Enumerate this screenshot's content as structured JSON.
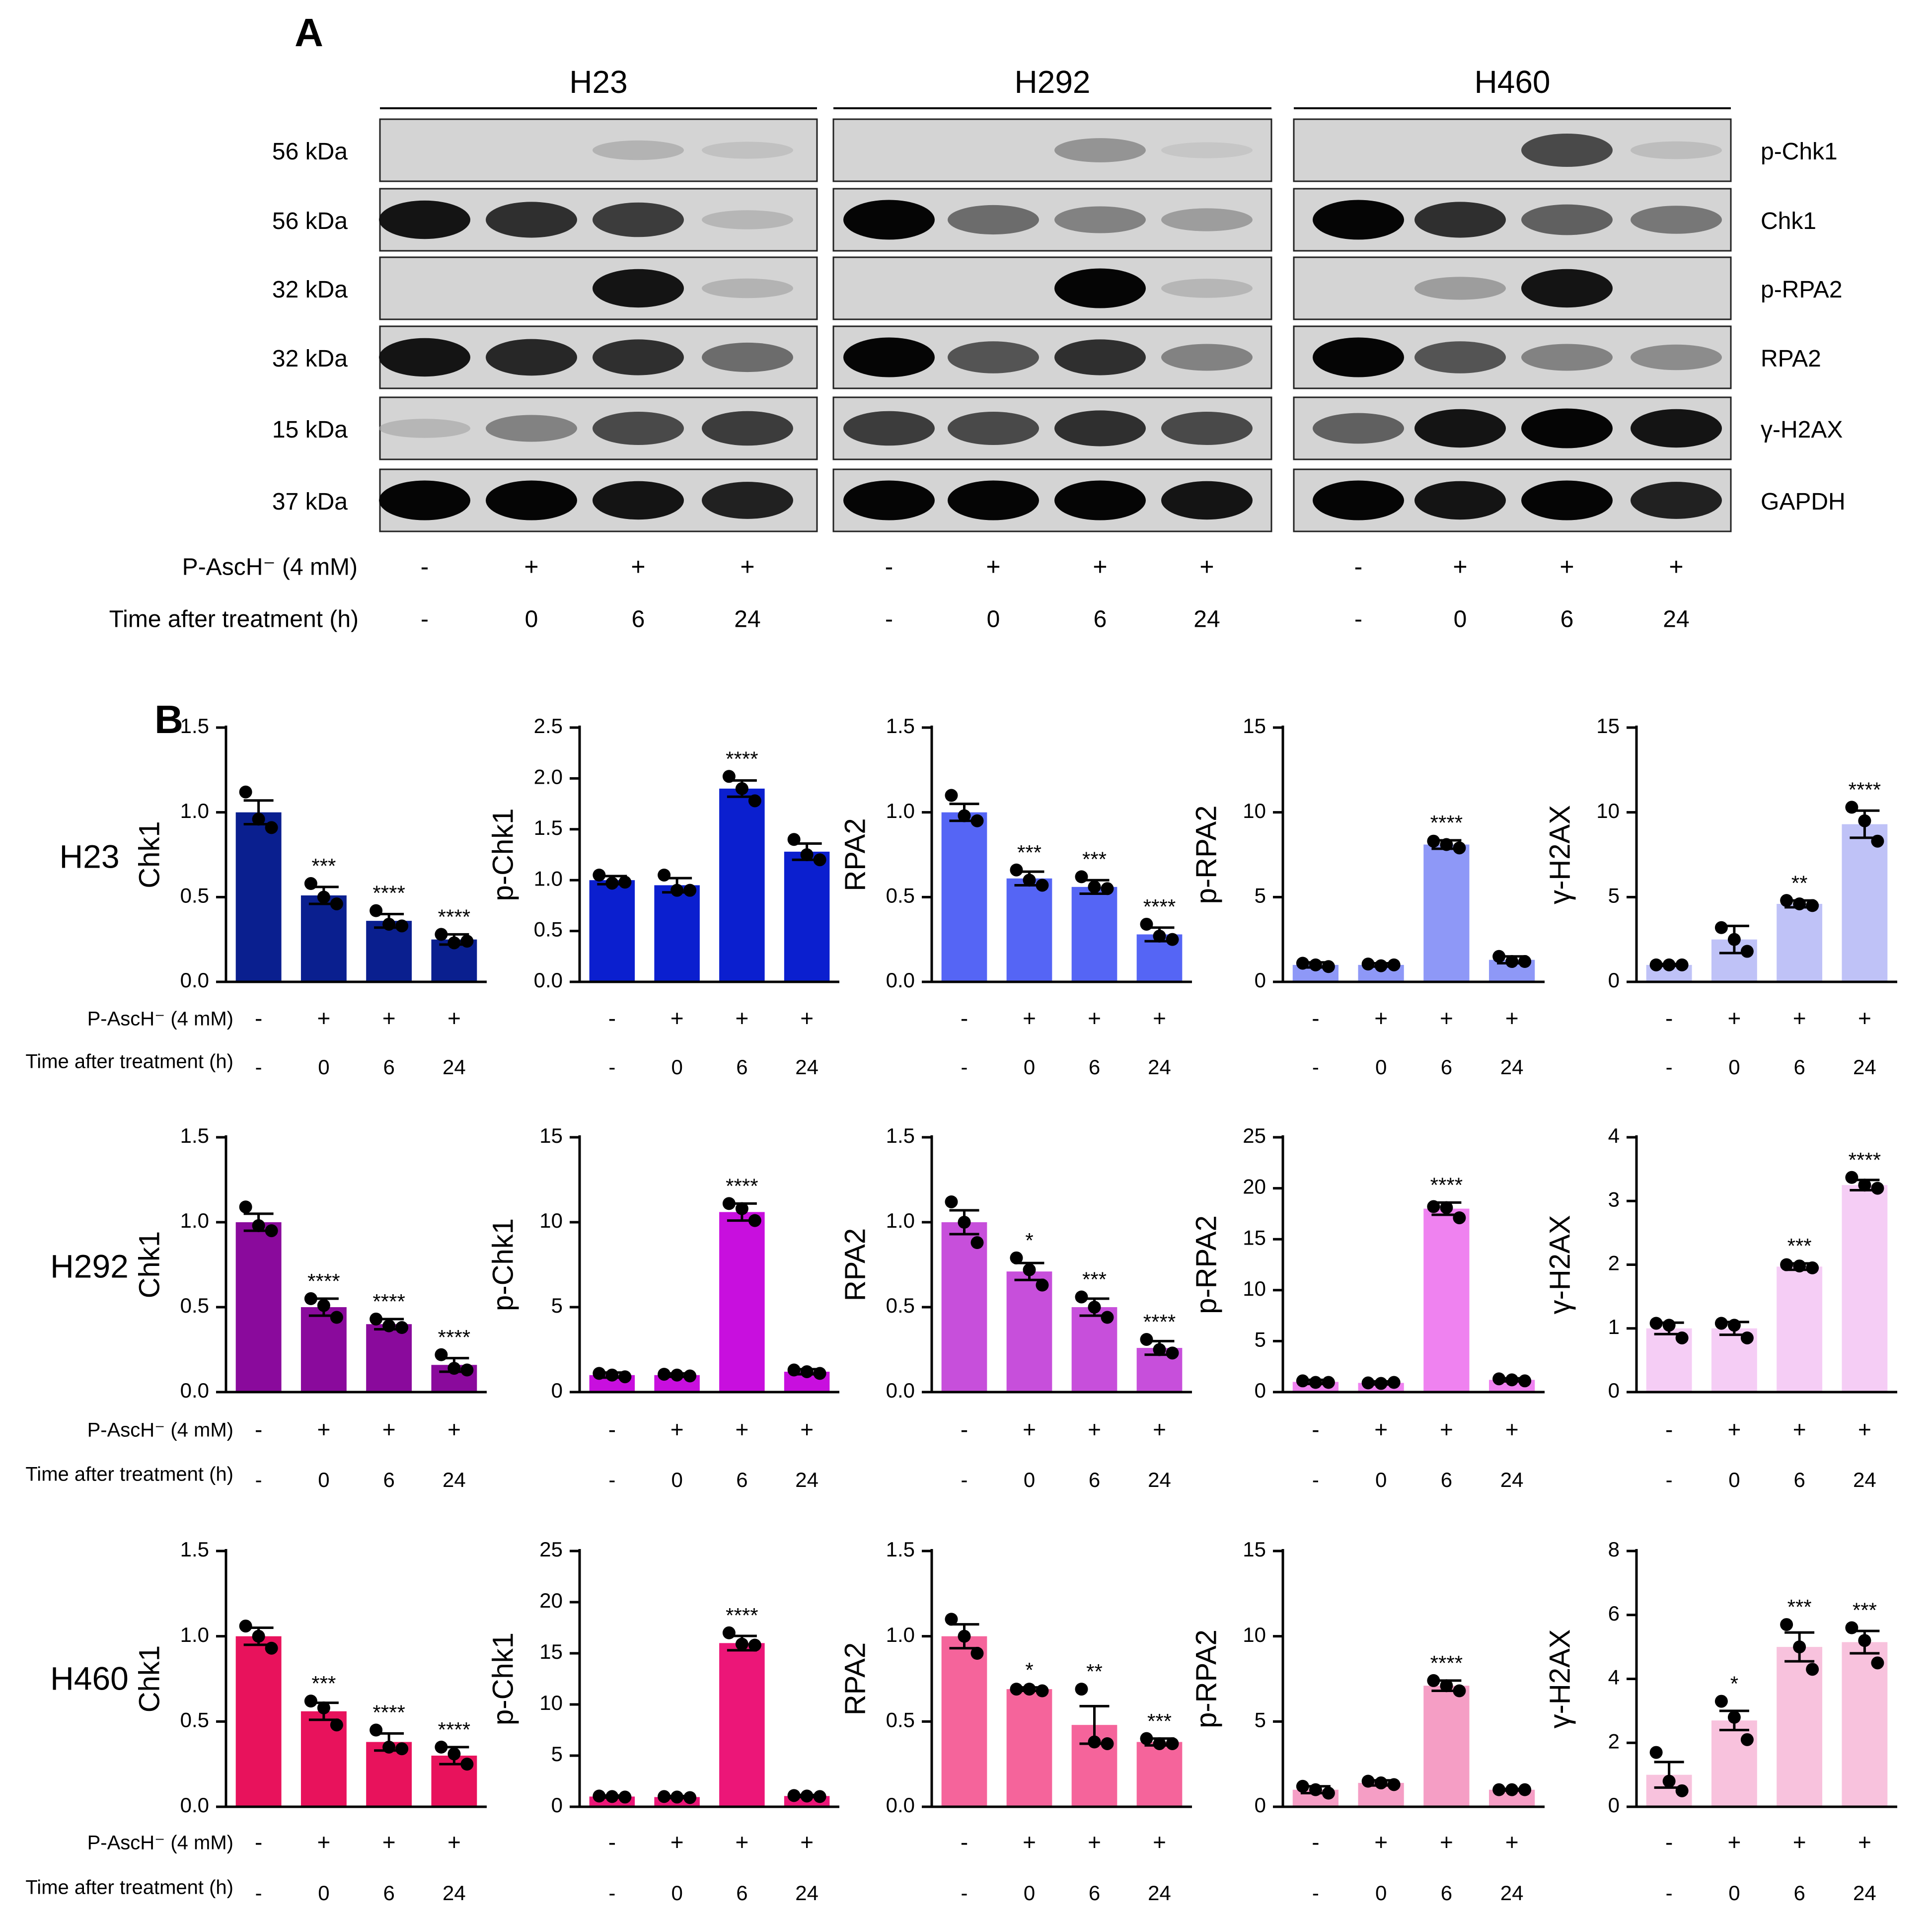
{
  "panel_a": {
    "label": "A",
    "size_markers": [
      "56 kDa",
      "56 kDa",
      "32 kDa",
      "32 kDa",
      "15 kDa",
      "37 kDa"
    ],
    "proteins": [
      "p-Chk1",
      "Chk1",
      "p-RPA2",
      "RPA2",
      "γ-H2AX",
      "GAPDH"
    ],
    "row_labels": [
      "P-AscH⁻ (4 mM)",
      "Time after treatment (h)"
    ],
    "treatment_symbols": [
      "-",
      "+",
      "+",
      "+"
    ],
    "time_values": [
      "-",
      "0",
      "6",
      "24"
    ],
    "cell_lines": [
      {
        "name": "H23",
        "band_intensity": [
          [
            0.0,
            0.0,
            0.22,
            0.12
          ],
          [
            0.95,
            0.85,
            0.8,
            0.2
          ],
          [
            0.0,
            0.0,
            0.95,
            0.22
          ],
          [
            0.95,
            0.88,
            0.85,
            0.6
          ],
          [
            0.2,
            0.5,
            0.75,
            0.8
          ],
          [
            1.0,
            1.0,
            0.95,
            0.9
          ]
        ]
      },
      {
        "name": "H292",
        "band_intensity": [
          [
            0.0,
            0.0,
            0.4,
            0.08
          ],
          [
            1.0,
            0.6,
            0.5,
            0.35
          ],
          [
            0.0,
            0.0,
            1.0,
            0.2
          ],
          [
            1.0,
            0.7,
            0.85,
            0.5
          ],
          [
            0.8,
            0.75,
            0.85,
            0.75
          ],
          [
            1.0,
            1.0,
            1.0,
            0.95
          ]
        ]
      },
      {
        "name": "H460",
        "band_intensity": [
          [
            0.0,
            0.0,
            0.75,
            0.15
          ],
          [
            1.0,
            0.85,
            0.65,
            0.55
          ],
          [
            0.0,
            0.35,
            0.95,
            0.0
          ],
          [
            1.0,
            0.7,
            0.5,
            0.45
          ],
          [
            0.65,
            0.95,
            1.0,
            0.95
          ],
          [
            1.0,
            0.95,
            1.0,
            0.9
          ]
        ]
      }
    ]
  },
  "panel_b": {
    "label": "B",
    "x_row_labels": [
      "P-AscH⁻ (4 mM)",
      "Time after treatment (h)"
    ],
    "treatment_symbols": [
      "-",
      "+",
      "+",
      "+"
    ],
    "time_values": [
      "-",
      "0",
      "6",
      "24"
    ]
  },
  "chart_data": [
    {
      "type": "bar",
      "cell_line": "H23",
      "ylabel": "Chk1",
      "ylim": [
        0,
        1.5
      ],
      "yticks": [
        0.0,
        0.5,
        1.0,
        1.5
      ],
      "color": "#0a1f8f",
      "values": [
        1.0,
        0.51,
        0.36,
        0.25
      ],
      "errors": [
        0.07,
        0.05,
        0.04,
        0.03
      ],
      "points": [
        [
          1.12,
          0.96,
          0.91
        ],
        [
          0.58,
          0.5,
          0.46
        ],
        [
          0.42,
          0.34,
          0.33
        ],
        [
          0.28,
          0.23,
          0.24
        ]
      ],
      "significance": [
        "",
        "***",
        "****",
        "****"
      ]
    },
    {
      "type": "bar",
      "cell_line": "H23",
      "ylabel": "p-Chk1",
      "ylim": [
        0,
        2.5
      ],
      "yticks": [
        0.0,
        0.5,
        1.0,
        1.5,
        2.0,
        2.5
      ],
      "color": "#0b1fcf",
      "values": [
        1.0,
        0.95,
        1.9,
        1.28
      ],
      "errors": [
        0.04,
        0.07,
        0.08,
        0.08
      ],
      "points": [
        [
          1.05,
          0.97,
          0.98
        ],
        [
          1.05,
          0.9,
          0.9
        ],
        [
          2.02,
          1.9,
          1.78
        ],
        [
          1.4,
          1.25,
          1.2
        ]
      ],
      "significance": [
        "",
        "",
        "****",
        ""
      ]
    },
    {
      "type": "bar",
      "cell_line": "H23",
      "ylabel": "RPA2",
      "ylim": [
        0,
        1.5
      ],
      "yticks": [
        0.0,
        0.5,
        1.0,
        1.5
      ],
      "color": "#5565f5",
      "values": [
        1.0,
        0.61,
        0.56,
        0.28
      ],
      "errors": [
        0.05,
        0.04,
        0.04,
        0.04
      ],
      "points": [
        [
          1.1,
          0.98,
          0.95
        ],
        [
          0.66,
          0.6,
          0.57
        ],
        [
          0.62,
          0.56,
          0.55
        ],
        [
          0.34,
          0.27,
          0.25
        ]
      ],
      "significance": [
        "",
        "***",
        "***",
        "****"
      ]
    },
    {
      "type": "bar",
      "cell_line": "H23",
      "ylabel": "p-RPA2",
      "ylim": [
        0,
        15
      ],
      "yticks": [
        0,
        5,
        10,
        15
      ],
      "color": "#8e98f7",
      "values": [
        1.0,
        1.0,
        8.1,
        1.3
      ],
      "errors": [
        0.15,
        0.1,
        0.25,
        0.2
      ],
      "points": [
        [
          1.1,
          1.0,
          0.9
        ],
        [
          1.05,
          0.95,
          1.0
        ],
        [
          8.3,
          8.1,
          7.9
        ],
        [
          1.5,
          1.2,
          1.2
        ]
      ],
      "significance": [
        "",
        "",
        "****",
        ""
      ]
    },
    {
      "type": "bar",
      "cell_line": "H23",
      "ylabel": "γ-H2AX",
      "ylim": [
        0,
        15
      ],
      "yticks": [
        0,
        5,
        10,
        15
      ],
      "color": "#bfc2f7",
      "values": [
        1.0,
        2.5,
        4.6,
        9.3
      ],
      "errors": [
        0.05,
        0.8,
        0.2,
        0.8
      ],
      "points": [
        [
          1.0,
          1.0,
          1.0
        ],
        [
          3.2,
          2.5,
          1.8
        ],
        [
          4.8,
          4.6,
          4.5
        ],
        [
          10.3,
          9.5,
          8.3
        ]
      ],
      "significance": [
        "",
        "",
        "**",
        "****"
      ]
    },
    {
      "type": "bar",
      "cell_line": "H292",
      "ylabel": "Chk1",
      "ylim": [
        0,
        1.5
      ],
      "yticks": [
        0.0,
        0.5,
        1.0,
        1.5
      ],
      "color": "#8a0a9c",
      "values": [
        1.0,
        0.5,
        0.4,
        0.16
      ],
      "errors": [
        0.05,
        0.05,
        0.03,
        0.04
      ],
      "points": [
        [
          1.09,
          0.98,
          0.95
        ],
        [
          0.55,
          0.51,
          0.44
        ],
        [
          0.43,
          0.39,
          0.38
        ],
        [
          0.22,
          0.14,
          0.13
        ]
      ],
      "significance": [
        "",
        "****",
        "****",
        "****"
      ]
    },
    {
      "type": "bar",
      "cell_line": "H292",
      "ylabel": "p-Chk1",
      "ylim": [
        0,
        15
      ],
      "yticks": [
        0,
        5,
        10,
        15
      ],
      "color": "#c80fde",
      "values": [
        1.0,
        1.0,
        10.6,
        1.2
      ],
      "errors": [
        0.15,
        0.1,
        0.5,
        0.15
      ],
      "points": [
        [
          1.1,
          1.0,
          0.9
        ],
        [
          1.05,
          1.0,
          0.95
        ],
        [
          11.1,
          10.8,
          10.1
        ],
        [
          1.3,
          1.2,
          1.1
        ]
      ],
      "significance": [
        "",
        "",
        "****",
        ""
      ]
    },
    {
      "type": "bar",
      "cell_line": "H292",
      "ylabel": "RPA2",
      "ylim": [
        0,
        1.5
      ],
      "yticks": [
        0.0,
        0.5,
        1.0,
        1.5
      ],
      "color": "#c74fdb",
      "values": [
        1.0,
        0.71,
        0.5,
        0.26
      ],
      "errors": [
        0.07,
        0.05,
        0.05,
        0.04
      ],
      "points": [
        [
          1.12,
          1.0,
          0.88
        ],
        [
          0.79,
          0.72,
          0.63
        ],
        [
          0.56,
          0.5,
          0.44
        ],
        [
          0.31,
          0.25,
          0.23
        ]
      ],
      "significance": [
        "",
        "*",
        "***",
        "****"
      ]
    },
    {
      "type": "bar",
      "cell_line": "H292",
      "ylabel": "p-RPA2",
      "ylim": [
        0,
        25
      ],
      "yticks": [
        0,
        5,
        10,
        15,
        20,
        25
      ],
      "color": "#ef82f0",
      "values": [
        1.0,
        0.9,
        18.0,
        1.2
      ],
      "errors": [
        0.2,
        0.15,
        0.6,
        0.15
      ],
      "points": [
        [
          1.1,
          0.95,
          0.95
        ],
        [
          0.9,
          0.85,
          0.95
        ],
        [
          18.2,
          18.1,
          17.1
        ],
        [
          1.3,
          1.2,
          1.1
        ]
      ],
      "significance": [
        "",
        "",
        "****",
        ""
      ]
    },
    {
      "type": "bar",
      "cell_line": "H292",
      "ylabel": "γ-H2AX",
      "ylim": [
        0,
        4
      ],
      "yticks": [
        0,
        1,
        2,
        3,
        4
      ],
      "color": "#f5cdf5",
      "values": [
        1.0,
        1.0,
        1.97,
        3.25
      ],
      "errors": [
        0.09,
        0.1,
        0.05,
        0.08
      ],
      "points": [
        [
          1.08,
          1.05,
          0.85
        ],
        [
          1.08,
          1.05,
          0.85
        ],
        [
          2.0,
          1.98,
          1.95
        ],
        [
          3.37,
          3.25,
          3.2
        ]
      ],
      "significance": [
        "",
        "",
        "***",
        "****"
      ]
    },
    {
      "type": "bar",
      "cell_line": "H460",
      "ylabel": "Chk1",
      "ylim": [
        0,
        1.5
      ],
      "yticks": [
        0.0,
        0.5,
        1.0,
        1.5
      ],
      "color": "#e8125c",
      "values": [
        1.0,
        0.56,
        0.38,
        0.3
      ],
      "errors": [
        0.05,
        0.05,
        0.05,
        0.05
      ],
      "points": [
        [
          1.06,
          1.0,
          0.93
        ],
        [
          0.62,
          0.58,
          0.48
        ],
        [
          0.45,
          0.35,
          0.34
        ],
        [
          0.35,
          0.31,
          0.25
        ]
      ],
      "significance": [
        "",
        "***",
        "****",
        "****"
      ]
    },
    {
      "type": "bar",
      "cell_line": "H460",
      "ylabel": "p-Chk1",
      "ylim": [
        0,
        25
      ],
      "yticks": [
        0,
        5,
        10,
        15,
        20,
        25
      ],
      "color": "#ec1678",
      "values": [
        1.0,
        0.95,
        16.0,
        1.05
      ],
      "errors": [
        0.1,
        0.1,
        0.7,
        0.1
      ],
      "points": [
        [
          1.05,
          1.0,
          0.95
        ],
        [
          1.0,
          0.95,
          0.9
        ],
        [
          17.0,
          15.9,
          15.8
        ],
        [
          1.1,
          1.05,
          1.0
        ]
      ],
      "significance": [
        "",
        "",
        "****",
        ""
      ]
    },
    {
      "type": "bar",
      "cell_line": "H460",
      "ylabel": "RPA2",
      "ylim": [
        0,
        1.5
      ],
      "yticks": [
        0.0,
        0.5,
        1.0,
        1.5
      ],
      "color": "#f5649b",
      "values": [
        1.0,
        0.69,
        0.48,
        0.38
      ],
      "errors": [
        0.07,
        0.01,
        0.11,
        0.02
      ],
      "points": [
        [
          1.1,
          1.0,
          0.9
        ],
        [
          0.69,
          0.69,
          0.68
        ],
        [
          0.69,
          0.38,
          0.37
        ],
        [
          0.4,
          0.37,
          0.37
        ]
      ],
      "significance": [
        "",
        "*",
        "**",
        "***"
      ]
    },
    {
      "type": "bar",
      "cell_line": "H460",
      "ylabel": "p-RPA2",
      "ylim": [
        0,
        15
      ],
      "yticks": [
        0,
        5,
        10,
        15
      ],
      "color": "#f59ec5",
      "values": [
        1.0,
        1.4,
        7.1,
        1.0
      ],
      "errors": [
        0.2,
        0.15,
        0.3,
        0.05
      ],
      "points": [
        [
          1.2,
          1.0,
          0.8
        ],
        [
          1.5,
          1.4,
          1.3
        ],
        [
          7.4,
          7.1,
          6.8
        ],
        [
          1.0,
          1.0,
          1.0
        ]
      ],
      "significance": [
        "",
        "",
        "****",
        ""
      ]
    },
    {
      "type": "bar",
      "cell_line": "H460",
      "ylabel": "γ-H2AX",
      "ylim": [
        0,
        8
      ],
      "yticks": [
        0,
        2,
        4,
        6,
        8
      ],
      "color": "#f8c2dd",
      "values": [
        1.0,
        2.7,
        5.0,
        5.15
      ],
      "errors": [
        0.4,
        0.3,
        0.45,
        0.35
      ],
      "points": [
        [
          1.7,
          0.8,
          0.5
        ],
        [
          3.3,
          2.8,
          2.1
        ],
        [
          5.7,
          5.0,
          4.3
        ],
        [
          5.6,
          5.2,
          4.5
        ]
      ],
      "significance": [
        "",
        "*",
        "***",
        "***"
      ]
    }
  ]
}
